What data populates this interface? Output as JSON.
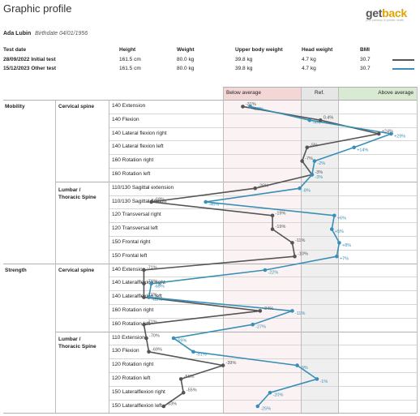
{
  "title": "Graphic profile",
  "logo": {
    "part1": "get",
    "part2": "back",
    "tagline": "your pathway to greater health"
  },
  "patient": {
    "name": "Ada Lubin",
    "birthdate_label": "Birthdate 04/01/1956"
  },
  "table_headers": [
    "Test date",
    "Height",
    "Weight",
    "Upper body weight",
    "Head weight",
    "BMI"
  ],
  "tests": [
    {
      "label": "28/09/2022 Initial test",
      "height": "161.5 cm",
      "weight": "80.0 kg",
      "upper": "39.8 kg",
      "head": "4.7 kg",
      "bmi": "30.7",
      "color": "#555555"
    },
    {
      "label": "15/12/2023 Other test",
      "height": "161.5 cm",
      "weight": "80.0 kg",
      "upper": "39.8 kg",
      "head": "4.7 kg",
      "bmi": "30.7",
      "color": "#3a8fb7"
    }
  ],
  "zones": {
    "below": "Below average",
    "ref": "Ref.",
    "above": "Above average",
    "below_color": "#f3d6d6",
    "ref_color": "#e6e6e6",
    "above_color": "#d8ebd2"
  },
  "sections": {
    "mobility": "Mobility",
    "strength": "Strength",
    "cervical": "Cervical spine",
    "lumbar_line1": "Lumbar /",
    "lumbar_line2": "Thoracic Spine",
    "cervical2": "Cervical spine",
    "lumbar2_line1": "Lumbar /",
    "lumbar2_line2": "Thoracic Spine"
  },
  "chart_data": {
    "type": "line",
    "orientation": "horizontal-profile",
    "categories": [
      "140 Extension",
      "140 Flexion",
      "140 Lateral flexion right",
      "140 Lateral flexion left",
      "160 Rotation right",
      "160 Rotation left",
      "110/130 Sagittal extension",
      "110/130 Sagittal flexion",
      "120 Transversal right",
      "120 Transversal left",
      "150 Frontal right",
      "150 Frontal left",
      "140 Extension",
      "140 Lateralflexion right",
      "140 Lateralflexion left",
      "160 Rotation right",
      "160 Rotation left",
      "110 Extension",
      "130 Flexion",
      "120 Rotation right",
      "120 Rotation left",
      "150 Lateralflexion right",
      "150 Lateralflexion left"
    ],
    "series": [
      {
        "color": "#555555",
        "values": [
          -31,
          0.4,
          24,
          -5,
          -7,
          -3,
          -26,
          -68,
          -19,
          -19,
          -11,
          -10,
          -71,
          -71,
          -71,
          -24,
          -71,
          -70,
          -69,
          -39,
          -56,
          -55,
          -63
        ],
        "labels": [
          "-31%",
          "0.4%",
          "+24%",
          "-5%",
          "-7%",
          "-3%",
          "-26%",
          "-68%",
          "-19%",
          "-19%",
          "-11%",
          "-10%",
          "-71%",
          "-71%",
          "-71%",
          "-24%",
          "-71%",
          "-70%",
          "-69%",
          "-39%",
          "-56%",
          "-55%",
          "-63%"
        ]
      },
      {
        "color": "#3a8fb7",
        "values": [
          -28,
          -4,
          29,
          14,
          -2,
          -3,
          -8,
          -46,
          6,
          5,
          8,
          7,
          -22,
          -68,
          -69,
          -11,
          -27,
          -59,
          -51,
          -9,
          -1,
          -20,
          -25
        ],
        "labels": [
          "-28%",
          "-4%",
          "+29%",
          "+14%",
          "-2%",
          "-3%",
          "-8%",
          "-46%",
          "+6%",
          "+5%",
          "+8%",
          "+7%",
          "-22%",
          "-68%",
          "-69%",
          "-11%",
          "-27%",
          "-59%",
          "-51%",
          "-9%",
          "-1%",
          "-20%",
          "-25%"
        ]
      }
    ]
  }
}
